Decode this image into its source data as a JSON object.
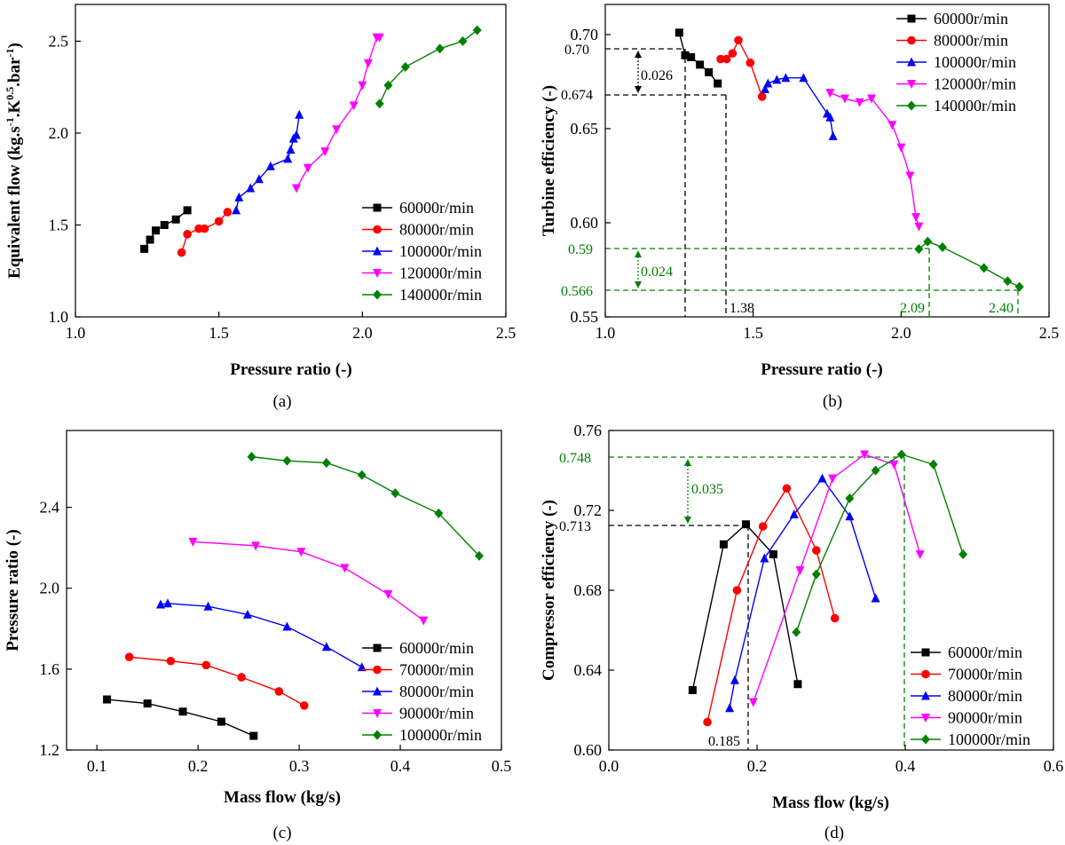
{
  "colors": {
    "60000": "#000000",
    "80000": "#ff0000",
    "100000": "#0000ff",
    "120000": "#ff00ff",
    "140000": "#008000",
    "70000": "#ff0000",
    "90000": "#ff00ff",
    "ann_green": "#008000",
    "ann_black": "#000000"
  },
  "chart_data": [
    {
      "id": "a",
      "type": "line",
      "caption": "(a)",
      "xlabel": "Pressure ratio (-)",
      "ylabel": "Equivalent flow (kg.s-1.K0.5.bar-1)",
      "xlim": [
        1.0,
        2.5
      ],
      "ylim": [
        1.0,
        2.7
      ],
      "xticks": [
        "1.0",
        "1.5",
        "2.0",
        "2.5"
      ],
      "xtickvals": [
        1.0,
        1.5,
        2.0,
        2.5
      ],
      "yticks": [
        "1.0",
        "1.5",
        "2.0",
        "2.5"
      ],
      "ytickvals": [
        1.0,
        1.5,
        2.0,
        2.5
      ],
      "legend_pos": "bottom-right",
      "series": [
        {
          "name": "60000r/min",
          "color": "#000000",
          "marker": "square",
          "x": [
            1.24,
            1.26,
            1.28,
            1.31,
            1.35,
            1.39
          ],
          "y": [
            1.37,
            1.42,
            1.47,
            1.5,
            1.53,
            1.58
          ]
        },
        {
          "name": "80000r/min",
          "color": "#ff0000",
          "marker": "circle",
          "x": [
            1.37,
            1.39,
            1.43,
            1.45,
            1.5,
            1.53
          ],
          "y": [
            1.35,
            1.45,
            1.48,
            1.48,
            1.52,
            1.57
          ]
        },
        {
          "name": "100000r/min",
          "color": "#0000ff",
          "marker": "triangle-up",
          "x": [
            1.56,
            1.57,
            1.61,
            1.64,
            1.68,
            1.74,
            1.75,
            1.76,
            1.77,
            1.78
          ],
          "y": [
            1.58,
            1.65,
            1.7,
            1.75,
            1.82,
            1.86,
            1.91,
            1.97,
            1.99,
            2.1
          ]
        },
        {
          "name": "120000r/min",
          "color": "#ff00ff",
          "marker": "triangle-down",
          "x": [
            1.77,
            1.81,
            1.87,
            1.91,
            1.97,
            2.0,
            2.02,
            2.05,
            2.06
          ],
          "y": [
            1.7,
            1.81,
            1.9,
            2.02,
            2.15,
            2.26,
            2.38,
            2.52,
            2.52
          ]
        },
        {
          "name": "140000r/min",
          "color": "#008000",
          "marker": "diamond",
          "x": [
            2.06,
            2.09,
            2.15,
            2.27,
            2.35,
            2.4
          ],
          "y": [
            2.16,
            2.26,
            2.36,
            2.46,
            2.5,
            2.56
          ]
        }
      ]
    },
    {
      "id": "b",
      "type": "line",
      "caption": "(b)",
      "xlabel": "Pressure ratio (-)",
      "ylabel": "Turbine efficiency (-)",
      "xlim": [
        1.0,
        2.5
      ],
      "ylim": [
        0.55,
        0.716
      ],
      "xticks": [
        "1.0",
        "1.5",
        "2.0",
        "2.5"
      ],
      "xtickvals": [
        1.0,
        1.5,
        2.0,
        2.5
      ],
      "yticks": [
        "0.55",
        "0.60",
        "0.65",
        "0.70"
      ],
      "ytickvals": [
        0.55,
        0.6,
        0.65,
        0.7
      ],
      "legend_pos": "top-right",
      "series": [
        {
          "name": "60000r/min",
          "color": "#000000",
          "marker": "square",
          "x": [
            1.25,
            1.27,
            1.29,
            1.32,
            1.35,
            1.38
          ],
          "y": [
            0.701,
            0.689,
            0.688,
            0.684,
            0.68,
            0.674
          ]
        },
        {
          "name": "80000r/min",
          "color": "#ff0000",
          "marker": "circle",
          "x": [
            1.39,
            1.41,
            1.43,
            1.45,
            1.49,
            1.53
          ],
          "y": [
            0.687,
            0.687,
            0.69,
            0.697,
            0.685,
            0.667
          ]
        },
        {
          "name": "100000r/min",
          "color": "#0000ff",
          "marker": "triangle-up",
          "x": [
            1.54,
            1.55,
            1.58,
            1.61,
            1.67,
            1.75,
            1.76,
            1.77
          ],
          "y": [
            0.671,
            0.674,
            0.676,
            0.677,
            0.677,
            0.658,
            0.656,
            0.646
          ]
        },
        {
          "name": "120000r/min",
          "color": "#ff00ff",
          "marker": "triangle-down",
          "x": [
            1.76,
            1.81,
            1.86,
            1.9,
            1.97,
            2.0,
            2.03,
            2.05,
            2.06
          ],
          "y": [
            0.669,
            0.666,
            0.664,
            0.666,
            0.652,
            0.64,
            0.625,
            0.603,
            0.598
          ]
        },
        {
          "name": "140000r/min",
          "color": "#008000",
          "marker": "diamond",
          "x": [
            2.06,
            2.09,
            2.14,
            2.28,
            2.36,
            2.4
          ],
          "y": [
            0.586,
            0.59,
            0.587,
            0.576,
            0.569,
            0.566
          ]
        }
      ],
      "annotations": {
        "black_delta": "0.026",
        "black_high": "0.70",
        "black_low": "0.674",
        "black_x": "1.38",
        "green_delta": "0.024",
        "green_high": "0.59",
        "green_low": "0.566",
        "green_x1": "2.09",
        "green_x2": "2.40"
      }
    },
    {
      "id": "c",
      "type": "line",
      "caption": "(c)",
      "xlabel": "Mass flow (kg/s)",
      "ylabel": "Pressure ratio (-)",
      "xlim": [
        0.07,
        0.5
      ],
      "ylim": [
        1.2,
        2.78
      ],
      "xticks": [
        "0.1",
        "0.2",
        "0.3",
        "0.4",
        "0.5"
      ],
      "xtickvals": [
        0.1,
        0.2,
        0.3,
        0.4,
        0.5
      ],
      "yticks": [
        "1.2",
        "1.6",
        "2.0",
        "2.4"
      ],
      "ytickvals": [
        1.2,
        1.6,
        2.0,
        2.4
      ],
      "legend_pos": "bottom-right",
      "series": [
        {
          "name": "60000r/min",
          "color": "#000000",
          "marker": "square",
          "x": [
            0.11,
            0.15,
            0.185,
            0.223,
            0.255
          ],
          "y": [
            1.45,
            1.43,
            1.39,
            1.34,
            1.27
          ]
        },
        {
          "name": "70000r/min",
          "color": "#ff0000",
          "marker": "circle",
          "x": [
            0.132,
            0.173,
            0.208,
            0.243,
            0.28,
            0.305
          ],
          "y": [
            1.66,
            1.64,
            1.62,
            1.56,
            1.49,
            1.42
          ]
        },
        {
          "name": "80000r/min",
          "color": "#0000ff",
          "marker": "triangle-up",
          "x": [
            0.163,
            0.17,
            0.21,
            0.249,
            0.288,
            0.327,
            0.362
          ],
          "y": [
            1.92,
            1.925,
            1.91,
            1.87,
            1.81,
            1.71,
            1.61
          ]
        },
        {
          "name": "90000r/min",
          "color": "#ff00ff",
          "marker": "triangle-down",
          "x": [
            0.195,
            0.257,
            0.302,
            0.345,
            0.388,
            0.423
          ],
          "y": [
            2.23,
            2.21,
            2.18,
            2.1,
            1.97,
            1.84
          ]
        },
        {
          "name": "100000r/min",
          "color": "#008000",
          "marker": "diamond",
          "x": [
            0.253,
            0.288,
            0.327,
            0.362,
            0.395,
            0.438,
            0.478
          ],
          "y": [
            2.65,
            2.63,
            2.62,
            2.56,
            2.47,
            2.37,
            2.16
          ]
        }
      ]
    },
    {
      "id": "d",
      "type": "line",
      "caption": "(d)",
      "xlabel": "Mass flow (kg/s)",
      "ylabel": "Compressor efficiency (-)",
      "xlim": [
        0.0,
        0.6
      ],
      "ylim": [
        0.6,
        0.76
      ],
      "xticks": [
        "0.0",
        "0.2",
        "0.4",
        "0.6"
      ],
      "xtickvals": [
        0.0,
        0.2,
        0.4,
        0.6
      ],
      "yticks": [
        "0.60",
        "0.64",
        "0.68",
        "0.72",
        "0.76"
      ],
      "ytickvals": [
        0.6,
        0.64,
        0.68,
        0.72,
        0.76
      ],
      "legend_pos": "bottom-right",
      "series": [
        {
          "name": "60000r/min",
          "color": "#000000",
          "marker": "square",
          "x": [
            0.113,
            0.155,
            0.185,
            0.222,
            0.255
          ],
          "y": [
            0.63,
            0.703,
            0.713,
            0.698,
            0.633
          ]
        },
        {
          "name": "70000r/min",
          "color": "#ff0000",
          "marker": "circle",
          "x": [
            0.133,
            0.173,
            0.208,
            0.24,
            0.28,
            0.305
          ],
          "y": [
            0.614,
            0.68,
            0.712,
            0.731,
            0.7,
            0.666
          ]
        },
        {
          "name": "80000r/min",
          "color": "#0000ff",
          "marker": "triangle-up",
          "x": [
            0.163,
            0.17,
            0.21,
            0.25,
            0.288,
            0.325,
            0.36
          ],
          "y": [
            0.621,
            0.635,
            0.696,
            0.718,
            0.736,
            0.717,
            0.676
          ]
        },
        {
          "name": "90000r/min",
          "color": "#ff00ff",
          "marker": "triangle-down",
          "x": [
            0.195,
            0.258,
            0.302,
            0.345,
            0.385,
            0.42
          ],
          "y": [
            0.624,
            0.69,
            0.736,
            0.748,
            0.743,
            0.698
          ]
        },
        {
          "name": "100000r/min",
          "color": "#008000",
          "marker": "diamond",
          "x": [
            0.253,
            0.28,
            0.325,
            0.36,
            0.395,
            0.438,
            0.478
          ],
          "y": [
            0.659,
            0.688,
            0.726,
            0.74,
            0.748,
            0.743,
            0.698
          ]
        }
      ],
      "annotations": {
        "black_y": "0.713",
        "black_x": "0.185",
        "green_y": "0.748",
        "green_delta": "0.035"
      }
    }
  ]
}
